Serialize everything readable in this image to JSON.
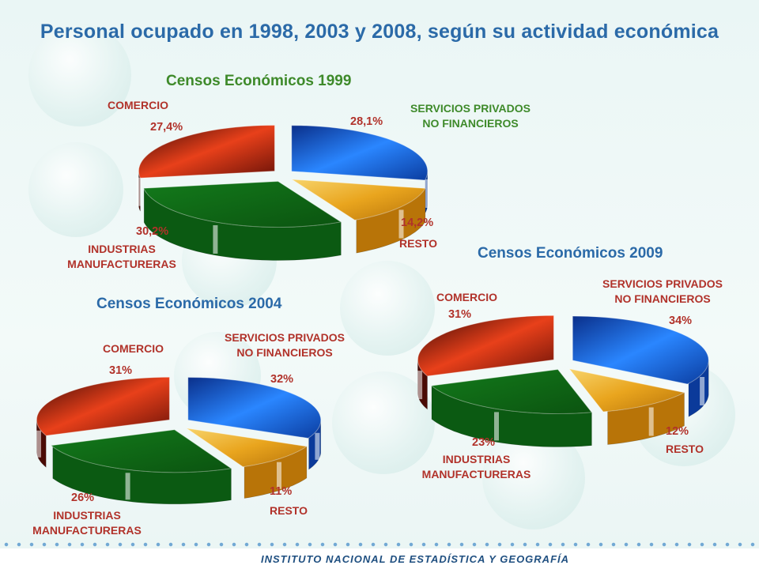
{
  "title": "Personal ocupado en 1998, 2003 y 2008, según su actividad económica",
  "footer": "INSTITUTO NACIONAL DE ESTADÍSTICA Y GEOGRAFÍA",
  "chart_data": [
    {
      "type": "pie",
      "title": "Censos Económicos 1999",
      "slices": [
        {
          "name": "SERVICIOS PRIVADOS NO FINANCIEROS",
          "value": 28.1,
          "label": "28,1%"
        },
        {
          "name": "RESTO",
          "value": 14.2,
          "label": "14,2%"
        },
        {
          "name": "INDUSTRIAS MANUFACTURERAS",
          "value": 30.2,
          "label": "30,2%"
        },
        {
          "name": "COMERCIO",
          "value": 27.4,
          "label": "27,4%"
        }
      ],
      "name_labels": {
        "services_1": "SERVICIOS PRIVADOS",
        "services_2": "NO FINANCIEROS",
        "resto": "RESTO",
        "industry_1": "INDUSTRIAS",
        "industry_2": "MANUFACTURERAS",
        "commerce": "COMERCIO"
      }
    },
    {
      "type": "pie",
      "title": "Censos Económicos 2004",
      "slices": [
        {
          "name": "SERVICIOS PRIVADOS NO FINANCIEROS",
          "value": 32,
          "label": "32%"
        },
        {
          "name": "RESTO",
          "value": 11,
          "label": "11%"
        },
        {
          "name": "INDUSTRIAS MANUFACTURERAS",
          "value": 26,
          "label": "26%"
        },
        {
          "name": "COMERCIO",
          "value": 31,
          "label": "31%"
        }
      ],
      "name_labels": {
        "services_1": "SERVICIOS PRIVADOS",
        "services_2": "NO FINANCIEROS",
        "resto": "RESTO",
        "industry_1": "INDUSTRIAS",
        "industry_2": "MANUFACTURERAS",
        "commerce": "COMERCIO"
      }
    },
    {
      "type": "pie",
      "title": "Censos Económicos 2009",
      "slices": [
        {
          "name": "SERVICIOS PRIVADOS NO FINANCIEROS",
          "value": 34,
          "label": "34%"
        },
        {
          "name": "RESTO",
          "value": 12,
          "label": "12%"
        },
        {
          "name": "INDUSTRIAS MANUFACTURERAS",
          "value": 23,
          "label": "23%"
        },
        {
          "name": "COMERCIO",
          "value": 31,
          "label": "31%"
        }
      ],
      "name_labels": {
        "services_1": "SERVICIOS PRIVADOS",
        "services_2": "NO FINANCIEROS",
        "resto": "RESTO",
        "industry_1": "INDUSTRIAS",
        "industry_2": "MANUFACTURERAS",
        "commerce": "COMERCIO"
      }
    }
  ],
  "colors": {
    "services": "#1a5fd0",
    "resto": "#e6a020",
    "industry": "#0f6a16",
    "commerce": "#c82a10"
  }
}
